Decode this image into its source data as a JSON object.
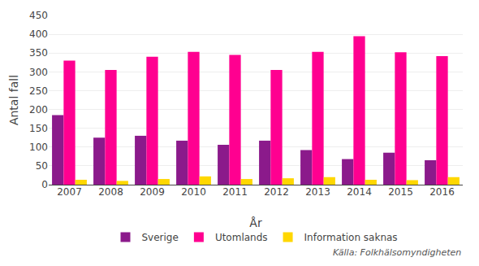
{
  "chart_data": {
    "type": "bar",
    "categories": [
      "2007",
      "2008",
      "2009",
      "2010",
      "2011",
      "2012",
      "2013",
      "2014",
      "2015",
      "2016"
    ],
    "series": [
      {
        "name": "Sverige",
        "color": "#8B1A8B",
        "values": [
          185,
          125,
          130,
          117,
          106,
          117,
          92,
          68,
          85,
          65
        ]
      },
      {
        "name": "Utomlands",
        "color": "#FF0090",
        "values": [
          330,
          305,
          340,
          353,
          345,
          305,
          353,
          395,
          352,
          342
        ]
      },
      {
        "name": "Information saknas",
        "color": "#FFD700",
        "values": [
          13,
          10,
          15,
          22,
          15,
          17,
          20,
          13,
          12,
          20
        ]
      }
    ],
    "xlabel": "År",
    "ylabel": "Antal fall",
    "ylim": [
      0,
      450
    ],
    "yticks": [
      0,
      50,
      100,
      150,
      200,
      250,
      300,
      350,
      400,
      450
    ],
    "grid": true,
    "legend": "bottom",
    "annotations": [
      "Källa: Folkhälsomyndigheten"
    ]
  }
}
